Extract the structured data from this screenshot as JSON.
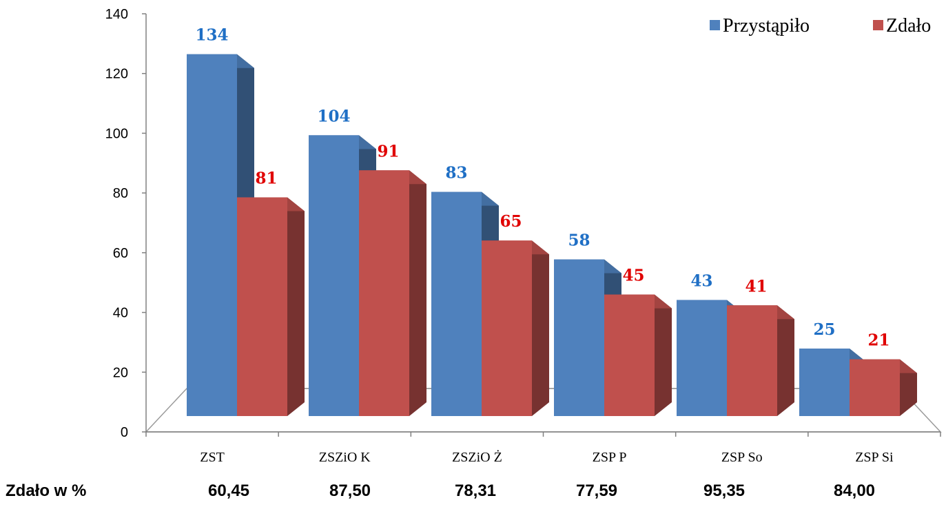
{
  "chart_data": {
    "type": "bar",
    "categories": [
      "ZST",
      "ZSZiO K",
      "ZSZiO Ż",
      "ZSP P",
      "ZSP So",
      "ZSP Si"
    ],
    "series": [
      {
        "name": "Przystąpiło",
        "values": [
          134,
          104,
          83,
          58,
          43,
          25
        ],
        "color": "#4F81BD",
        "label_color": "#1F6FC5"
      },
      {
        "name": "Zdało",
        "values": [
          81,
          91,
          65,
          45,
          41,
          21
        ],
        "color": "#C0504D",
        "label_color": "#E00000"
      }
    ],
    "ylim": [
      0,
      140
    ],
    "yticks": [
      0,
      20,
      40,
      60,
      80,
      100,
      120,
      140
    ],
    "legend_position": "top-right",
    "style": "3d-clustered-column",
    "percent_row": {
      "label": "Zdało w %",
      "values": [
        "60,45",
        "87,50",
        "78,31",
        "77,59",
        "95,35",
        "84,00"
      ]
    }
  }
}
